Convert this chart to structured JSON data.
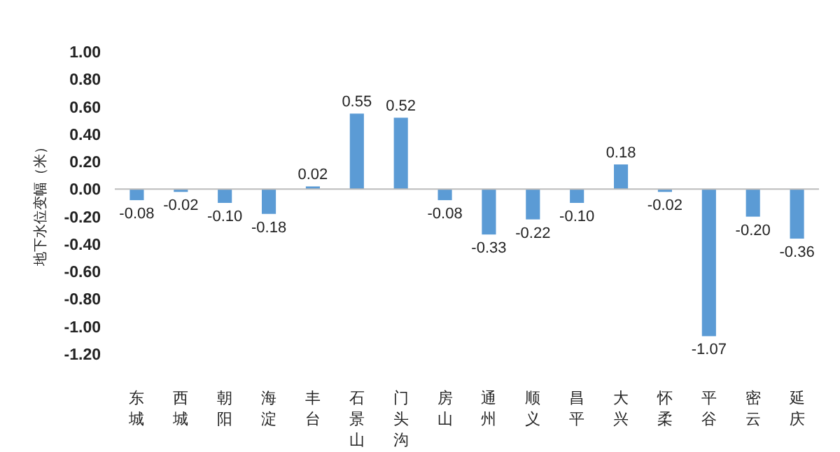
{
  "chart_data": {
    "type": "bar",
    "ylabel": "地下水位变幅（米）",
    "categories": [
      "东城",
      "西城",
      "朝阳",
      "海淀",
      "丰台",
      "石景山",
      "门头沟",
      "房山",
      "通州",
      "顺义",
      "昌平",
      "大兴",
      "怀柔",
      "平谷",
      "密云",
      "延庆"
    ],
    "values": [
      -0.08,
      -0.02,
      -0.1,
      -0.18,
      0.02,
      0.55,
      0.52,
      -0.08,
      -0.33,
      -0.22,
      -0.1,
      0.18,
      -0.02,
      -1.07,
      -0.2,
      -0.36
    ],
    "value_labels": [
      "-0.08",
      "-0.02",
      "-0.10",
      "-0.18",
      "0.02",
      "0.55",
      "0.52",
      "-0.08",
      "-0.33",
      "-0.22",
      "-0.10",
      "0.18",
      "-0.02",
      "-1.07",
      "-0.20",
      "-0.36"
    ],
    "color": "#5b9bd5",
    "ylim": [
      -1.2,
      1.0
    ],
    "yticks": [
      {
        "value": 1.0,
        "label": "1.00"
      },
      {
        "value": 0.8,
        "label": "0.80"
      },
      {
        "value": 0.6,
        "label": "0.60"
      },
      {
        "value": 0.4,
        "label": "0.40"
      },
      {
        "value": 0.2,
        "label": "0.20"
      },
      {
        "value": 0,
        "label": "0.00"
      },
      {
        "value": -0.2,
        "label": "-0.20"
      },
      {
        "value": -0.4,
        "label": "-0.40"
      },
      {
        "value": -0.6,
        "label": "-0.60"
      },
      {
        "value": -0.8,
        "label": "-0.80"
      },
      {
        "value": -1.0,
        "label": "-1.00"
      },
      {
        "value": -1.2,
        "label": "-1.20"
      }
    ]
  }
}
